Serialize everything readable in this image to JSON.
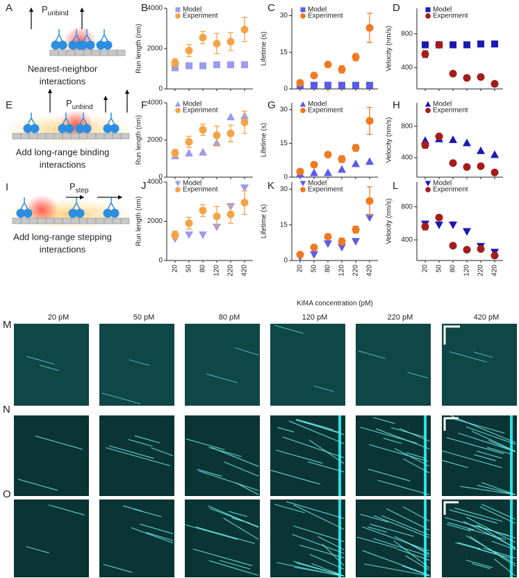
{
  "panel_labels": [
    "A",
    "B",
    "C",
    "D",
    "E",
    "F",
    "G",
    "H",
    "I",
    "J",
    "K",
    "L",
    "M",
    "N",
    "O"
  ],
  "schematics": [
    {
      "caption_lines": [
        "Nearest-neighbor",
        "interactions"
      ],
      "arrow_label": {
        "main": "P",
        "sub": "unbind"
      }
    },
    {
      "caption_lines": [
        "Add long-range binding",
        "interactions"
      ],
      "arrow_label": {
        "main": "P",
        "sub": "unbind"
      }
    },
    {
      "caption_lines": [
        "Add long-range stepping",
        "interactions"
      ],
      "arrow_label": {
        "main": "P",
        "sub": "step"
      }
    }
  ],
  "kymographs": {
    "concentrations": [
      "20 pM",
      "50 pM",
      "80 pM",
      "120 pM",
      "220 pM",
      "420 pM"
    ]
  },
  "chart_data": [
    {
      "type": "scatter",
      "ylabel": "Run length (nm)",
      "ylim": [
        0,
        4000
      ],
      "yticks": [
        0,
        2000,
        4000
      ],
      "series": [
        {
          "name": "Model",
          "color": "#9b9bf0",
          "marker": "square",
          "values": [
            1050,
            1150,
            1150,
            1200,
            1200,
            1200
          ]
        },
        {
          "name": "Experiment",
          "color": "#f5a345",
          "marker": "circle",
          "values": [
            1300,
            1900,
            2550,
            2250,
            2350,
            2950
          ],
          "errors": [
            200,
            300,
            300,
            500,
            450,
            600
          ]
        }
      ]
    },
    {
      "type": "scatter",
      "ylabel": "Lifetime (s)",
      "ylim": [
        0,
        33
      ],
      "yticks": [
        0,
        15,
        30
      ],
      "series": [
        {
          "name": "Model",
          "color": "#5b5bea",
          "marker": "square",
          "values": [
            1.5,
            1.5,
            1.5,
            1.5,
            1.5,
            1.5
          ]
        },
        {
          "name": "Experiment",
          "color": "#f07a22",
          "marker": "circle",
          "values": [
            2.5,
            5.5,
            10,
            8,
            13,
            25
          ],
          "errors": [
            0.5,
            0.8,
            1,
            1.5,
            1.5,
            6
          ]
        }
      ]
    },
    {
      "type": "scatter",
      "ylabel": "Velocity (nm/s)",
      "ylim": [
        150,
        1100
      ],
      "yticks": [
        400,
        800
      ],
      "series": [
        {
          "name": "Model",
          "color": "#1a1ab0",
          "marker": "square",
          "values": [
            670,
            670,
            670,
            670,
            680,
            680
          ]
        },
        {
          "name": "Experiment",
          "color": "#a51c1c",
          "marker": "circle",
          "values": [
            560,
            670,
            330,
            280,
            290,
            210
          ],
          "errors": [
            40,
            20,
            15,
            15,
            15,
            15
          ]
        }
      ]
    },
    {
      "type": "scatter",
      "ylabel": "Run length (nm)",
      "ylim": [
        0,
        4000
      ],
      "yticks": [
        0,
        2000,
        4000
      ],
      "series": [
        {
          "name": "Model",
          "color": "#9b9bf0",
          "marker": "triangle-up",
          "values": [
            1150,
            1300,
            1350,
            1850,
            3250,
            3300
          ]
        },
        {
          "name": "Experiment",
          "color": "#f5a345",
          "marker": "circle",
          "values": [
            1300,
            1900,
            2550,
            2250,
            2350,
            2950
          ],
          "errors": [
            200,
            300,
            300,
            500,
            450,
            600
          ]
        }
      ]
    },
    {
      "type": "scatter",
      "ylabel": "Lifetime (s)",
      "ylim": [
        0,
        33
      ],
      "yticks": [
        0,
        15,
        30
      ],
      "series": [
        {
          "name": "Model",
          "color": "#5b5bea",
          "marker": "triangle-up",
          "values": [
            1.5,
            2,
            2,
            3.5,
            6,
            7
          ]
        },
        {
          "name": "Experiment",
          "color": "#f07a22",
          "marker": "circle",
          "values": [
            2.5,
            5.5,
            10,
            8,
            13,
            25
          ],
          "errors": [
            0.5,
            0.8,
            1,
            1.5,
            1.5,
            6
          ]
        }
      ]
    },
    {
      "type": "scatter",
      "ylabel": "Velocity (nm/s)",
      "ylim": [
        150,
        1100
      ],
      "yticks": [
        400,
        800
      ],
      "series": [
        {
          "name": "Model",
          "color": "#1a1ab0",
          "marker": "triangle-up",
          "values": [
            620,
            640,
            630,
            590,
            490,
            440
          ]
        },
        {
          "name": "Experiment",
          "color": "#a51c1c",
          "marker": "circle",
          "values": [
            560,
            670,
            330,
            280,
            290,
            210
          ],
          "errors": [
            40,
            20,
            15,
            15,
            15,
            15
          ]
        }
      ]
    },
    {
      "type": "scatter",
      "ylabel": "Run length (nm)",
      "ylim": [
        0,
        4000
      ],
      "yticks": [
        0,
        2000,
        4000
      ],
      "categories": [
        "20",
        "50",
        "80",
        "120",
        "220",
        "420"
      ],
      "series": [
        {
          "name": "Model",
          "color": "#9b9bf0",
          "marker": "triangle-down",
          "values": [
            1100,
            1300,
            1300,
            1700,
            2750,
            3700
          ]
        },
        {
          "name": "Experiment",
          "color": "#f5a345",
          "marker": "circle",
          "values": [
            1300,
            1900,
            2550,
            2250,
            2350,
            2950
          ],
          "errors": [
            200,
            300,
            300,
            500,
            450,
            600
          ]
        }
      ]
    },
    {
      "type": "scatter",
      "ylabel": "Lifetime (s)",
      "xlabel": "Kif4A concentration (pM)",
      "ylim": [
        0,
        33
      ],
      "yticks": [
        0,
        15,
        30
      ],
      "categories": [
        "20",
        "50",
        "80",
        "120",
        "220",
        "420"
      ],
      "series": [
        {
          "name": "Model",
          "color": "#5b5bea",
          "marker": "triangle-down",
          "values": [
            1.5,
            2.5,
            7,
            5.5,
            8,
            18
          ]
        },
        {
          "name": "Experiment",
          "color": "#f07a22",
          "marker": "circle",
          "values": [
            2.5,
            5.5,
            10,
            8,
            13,
            25
          ],
          "errors": [
            0.5,
            0.8,
            1,
            1.5,
            1.5,
            6
          ]
        }
      ]
    },
    {
      "type": "scatter",
      "ylabel": "Velocity (nm/s)",
      "ylim": [
        150,
        1100
      ],
      "yticks": [
        400,
        800
      ],
      "categories": [
        "20",
        "50",
        "80",
        "120",
        "220",
        "420"
      ],
      "series": [
        {
          "name": "Model",
          "color": "#1a1ab0",
          "marker": "triangle-down",
          "values": [
            590,
            580,
            580,
            500,
            320,
            250
          ]
        },
        {
          "name": "Experiment",
          "color": "#a51c1c",
          "marker": "circle",
          "values": [
            560,
            670,
            330,
            280,
            290,
            210
          ],
          "errors": [
            40,
            20,
            15,
            15,
            15,
            15
          ]
        }
      ]
    }
  ]
}
